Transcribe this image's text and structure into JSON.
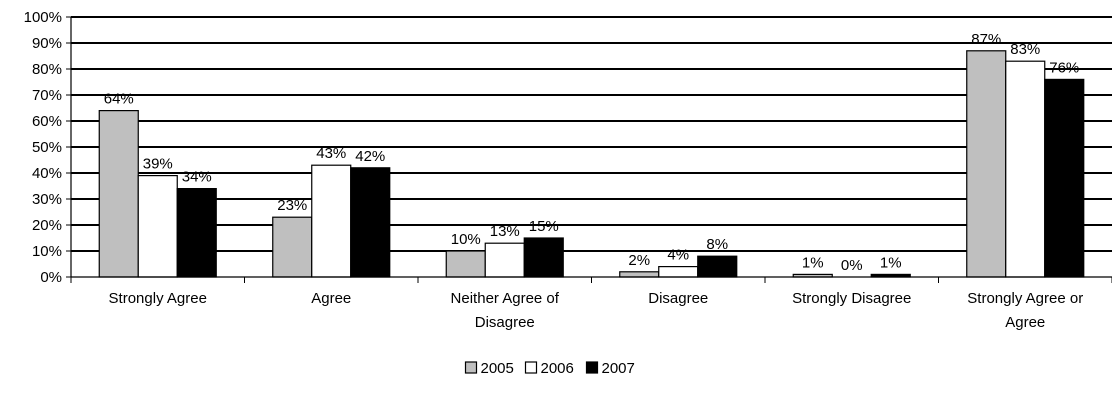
{
  "chart_data": {
    "type": "bar",
    "categories": [
      [
        "Strongly Agree"
      ],
      [
        "Agree"
      ],
      [
        "Neither Agree of",
        "Disagree"
      ],
      [
        "Disagree"
      ],
      [
        "Strongly Disagree"
      ],
      [
        "Strongly Agree or",
        "Agree"
      ]
    ],
    "series": [
      {
        "name": "2005",
        "values": [
          64,
          23,
          10,
          2,
          1,
          87
        ],
        "color": "#bfbfbf"
      },
      {
        "name": "2006",
        "values": [
          39,
          43,
          13,
          4,
          0,
          83
        ],
        "color": "#ffffff"
      },
      {
        "name": "2007",
        "values": [
          34,
          42,
          15,
          8,
          1,
          76
        ],
        "color": "#000000"
      }
    ],
    "ylim": [
      0,
      100
    ],
    "yticks": [
      0,
      10,
      20,
      30,
      40,
      50,
      60,
      70,
      80,
      90,
      100
    ],
    "tick_suffix": "%",
    "value_suffix": "%",
    "grid": true,
    "legend_position": "bottom",
    "title": "",
    "xlabel": "",
    "ylabel": ""
  }
}
